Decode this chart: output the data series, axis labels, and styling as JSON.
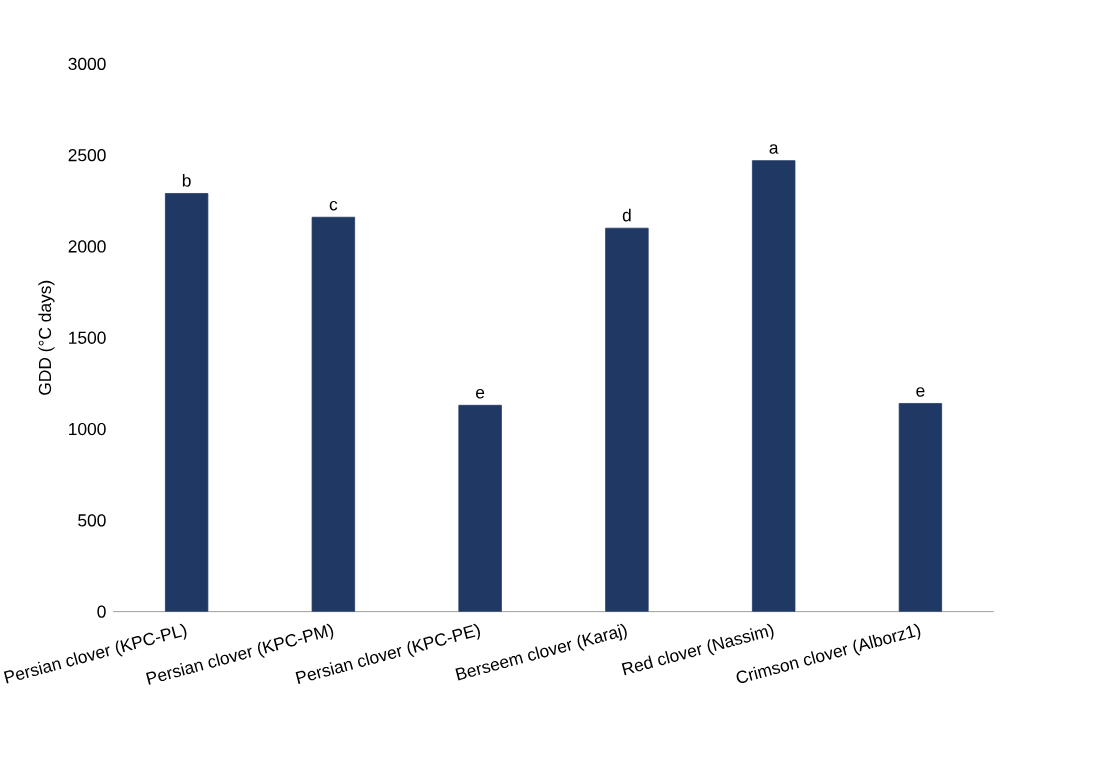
{
  "chart_data": {
    "type": "bar",
    "ylabel": "GDD (°C days)",
    "categories": [
      "Persian clover (KPC-PL)",
      "Persian clover (KPC-PM)",
      "Persian clover (KPC-PE)",
      "Berseem clover (Karaj)",
      "Red clover (Nassim)",
      "Crimson clover (Alborz1)"
    ],
    "values": [
      2290,
      2160,
      1130,
      2100,
      2470,
      1140
    ],
    "color": "#1f3864",
    "ylim": [
      0,
      3000
    ],
    "yticks": [
      0,
      500,
      1000,
      1500,
      2000,
      2500,
      3000
    ],
    "annotations": [
      "b",
      "c",
      "e",
      "d",
      "a",
      "e"
    ]
  }
}
